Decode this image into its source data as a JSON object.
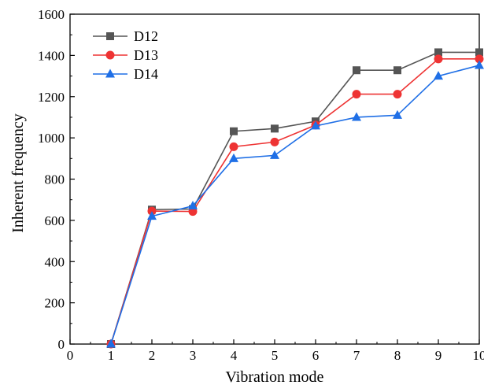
{
  "chart_data": {
    "type": "line",
    "xlabel": "Vibration mode",
    "ylabel": "Inherent frequency",
    "xlim": [
      0,
      10
    ],
    "ylim": [
      0,
      1600
    ],
    "xticks": [
      0,
      1,
      2,
      3,
      4,
      5,
      6,
      7,
      8,
      9,
      10
    ],
    "yticks": [
      0,
      200,
      400,
      600,
      800,
      1000,
      1200,
      1400,
      1600
    ],
    "grid": false,
    "legend_position": "top-left",
    "x": [
      1,
      2,
      3,
      4,
      5,
      6,
      7,
      8,
      9,
      10
    ],
    "series": [
      {
        "name": "D12",
        "color": "#555555",
        "marker": "square",
        "values": [
          0,
          652,
          655,
          1032,
          1045,
          1080,
          1328,
          1328,
          1415,
          1415
        ]
      },
      {
        "name": "D13",
        "color": "#ee3333",
        "marker": "circle",
        "values": [
          0,
          645,
          643,
          957,
          980,
          1062,
          1212,
          1212,
          1383,
          1383
        ]
      },
      {
        "name": "D14",
        "color": "#1f6fe6",
        "marker": "triangle",
        "values": [
          0,
          620,
          670,
          900,
          915,
          1058,
          1100,
          1110,
          1300,
          1352
        ]
      }
    ]
  }
}
